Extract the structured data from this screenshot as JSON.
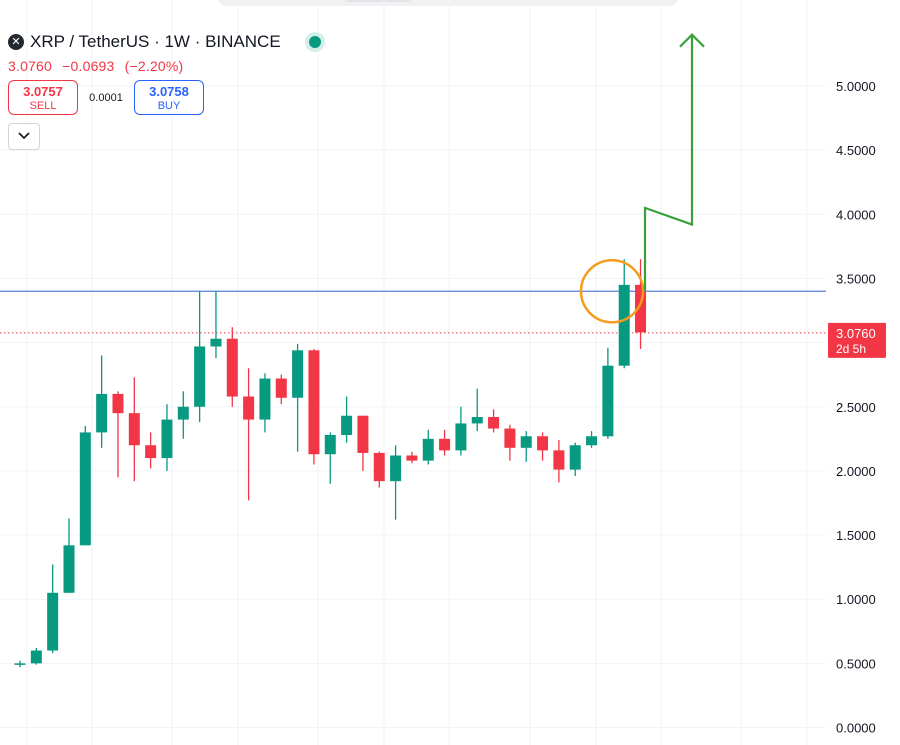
{
  "header": {
    "logo_icon": "xrp-logo",
    "title": "XRP / TetherUS · 1W · BINANCE",
    "last_price": "3.0760",
    "change": "−0.0693",
    "change_pct": "(−2.20%)",
    "sell_price": "3.0757",
    "sell_label": "SELL",
    "spread": "0.0001",
    "buy_price": "3.0758",
    "buy_label": "BUY",
    "collapse_icon": "chevron-down-icon"
  },
  "colors": {
    "up": "#089981",
    "down": "#f23645",
    "resistance": "#5b7fd6",
    "circle": "#f59c1a",
    "arrow": "#3aa13a",
    "axis_text": "#131722"
  },
  "chart_data": {
    "type": "candlestick",
    "ylim": [
      -0.05,
      5.5
    ],
    "y_ticks": [
      "5.0000",
      "4.5000",
      "4.0000",
      "3.5000",
      "3.0000",
      "2.5000",
      "2.0000",
      "1.5000",
      "1.0000",
      "0.5000",
      "0.0000"
    ],
    "y_tick_values": [
      5.0,
      4.5,
      4.0,
      3.5,
      3.0,
      2.5,
      2.0,
      1.5,
      1.0,
      0.5,
      0.0
    ],
    "current_price_label": "3.0760",
    "countdown_label": "2d 5h",
    "current_price": 3.076,
    "resistance_level": 3.4,
    "candles": [
      {
        "o": 0.49,
        "h": 0.52,
        "l": 0.47,
        "c": 0.5
      },
      {
        "o": 0.5,
        "h": 0.62,
        "l": 0.49,
        "c": 0.6
      },
      {
        "o": 0.6,
        "h": 1.27,
        "l": 0.58,
        "c": 1.05
      },
      {
        "o": 1.05,
        "h": 1.63,
        "l": 1.05,
        "c": 1.42
      },
      {
        "o": 1.42,
        "h": 2.35,
        "l": 1.42,
        "c": 2.3
      },
      {
        "o": 2.3,
        "h": 2.9,
        "l": 2.18,
        "c": 2.6
      },
      {
        "o": 2.6,
        "h": 2.62,
        "l": 1.95,
        "c": 2.45
      },
      {
        "o": 2.45,
        "h": 2.73,
        "l": 1.92,
        "c": 2.2
      },
      {
        "o": 2.2,
        "h": 2.3,
        "l": 2.02,
        "c": 2.1
      },
      {
        "o": 2.1,
        "h": 2.52,
        "l": 2.0,
        "c": 2.4
      },
      {
        "o": 2.4,
        "h": 2.62,
        "l": 2.25,
        "c": 2.5
      },
      {
        "o": 2.5,
        "h": 3.4,
        "l": 2.38,
        "c": 2.97
      },
      {
        "o": 2.97,
        "h": 3.4,
        "l": 2.88,
        "c": 3.03
      },
      {
        "o": 3.03,
        "h": 3.12,
        "l": 2.5,
        "c": 2.58
      },
      {
        "o": 2.58,
        "h": 2.8,
        "l": 1.77,
        "c": 2.4
      },
      {
        "o": 2.4,
        "h": 2.76,
        "l": 2.3,
        "c": 2.72
      },
      {
        "o": 2.72,
        "h": 2.75,
        "l": 2.52,
        "c": 2.57
      },
      {
        "o": 2.57,
        "h": 2.99,
        "l": 2.15,
        "c": 2.94
      },
      {
        "o": 2.94,
        "h": 2.95,
        "l": 2.05,
        "c": 2.13
      },
      {
        "o": 2.13,
        "h": 2.3,
        "l": 1.9,
        "c": 2.28
      },
      {
        "o": 2.28,
        "h": 2.58,
        "l": 2.22,
        "c": 2.43
      },
      {
        "o": 2.43,
        "h": 2.43,
        "l": 2.0,
        "c": 2.14
      },
      {
        "o": 2.14,
        "h": 2.15,
        "l": 1.87,
        "c": 1.92
      },
      {
        "o": 1.92,
        "h": 2.2,
        "l": 1.62,
        "c": 2.12
      },
      {
        "o": 2.12,
        "h": 2.15,
        "l": 2.06,
        "c": 2.08
      },
      {
        "o": 2.08,
        "h": 2.32,
        "l": 2.05,
        "c": 2.25
      },
      {
        "o": 2.25,
        "h": 2.32,
        "l": 2.12,
        "c": 2.16
      },
      {
        "o": 2.16,
        "h": 2.5,
        "l": 2.12,
        "c": 2.37
      },
      {
        "o": 2.37,
        "h": 2.64,
        "l": 2.31,
        "c": 2.42
      },
      {
        "o": 2.42,
        "h": 2.48,
        "l": 2.3,
        "c": 2.33
      },
      {
        "o": 2.33,
        "h": 2.36,
        "l": 2.08,
        "c": 2.18
      },
      {
        "o": 2.18,
        "h": 2.31,
        "l": 2.07,
        "c": 2.27
      },
      {
        "o": 2.27,
        "h": 2.3,
        "l": 2.08,
        "c": 2.16
      },
      {
        "o": 2.16,
        "h": 2.24,
        "l": 1.91,
        "c": 2.01
      },
      {
        "o": 2.01,
        "h": 2.22,
        "l": 1.96,
        "c": 2.2
      },
      {
        "o": 2.2,
        "h": 2.31,
        "l": 2.18,
        "c": 2.27
      },
      {
        "o": 2.27,
        "h": 2.96,
        "l": 2.25,
        "c": 2.82
      },
      {
        "o": 2.82,
        "h": 3.65,
        "l": 2.8,
        "c": 3.45
      },
      {
        "o": 3.45,
        "h": 3.65,
        "l": 2.95,
        "c": 3.08
      }
    ],
    "annotations": {
      "circle_center_price": 3.4,
      "arrow_path_prices": [
        3.4,
        4.05,
        3.92,
        5.4
      ]
    }
  }
}
